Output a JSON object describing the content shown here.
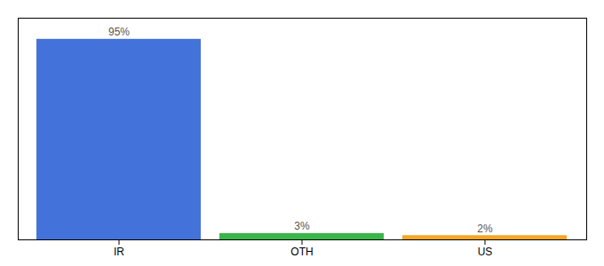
{
  "chart_data": {
    "type": "bar",
    "categories": [
      "IR",
      "OTH",
      "US"
    ],
    "values": [
      95,
      3,
      2
    ],
    "value_labels": [
      "95%",
      "3%",
      "2%"
    ],
    "colors": [
      "#4472db",
      "#3ab54a",
      "#f5a623"
    ],
    "ylim": [
      0,
      105
    ],
    "data_labels": true,
    "tick_labels": "x"
  }
}
